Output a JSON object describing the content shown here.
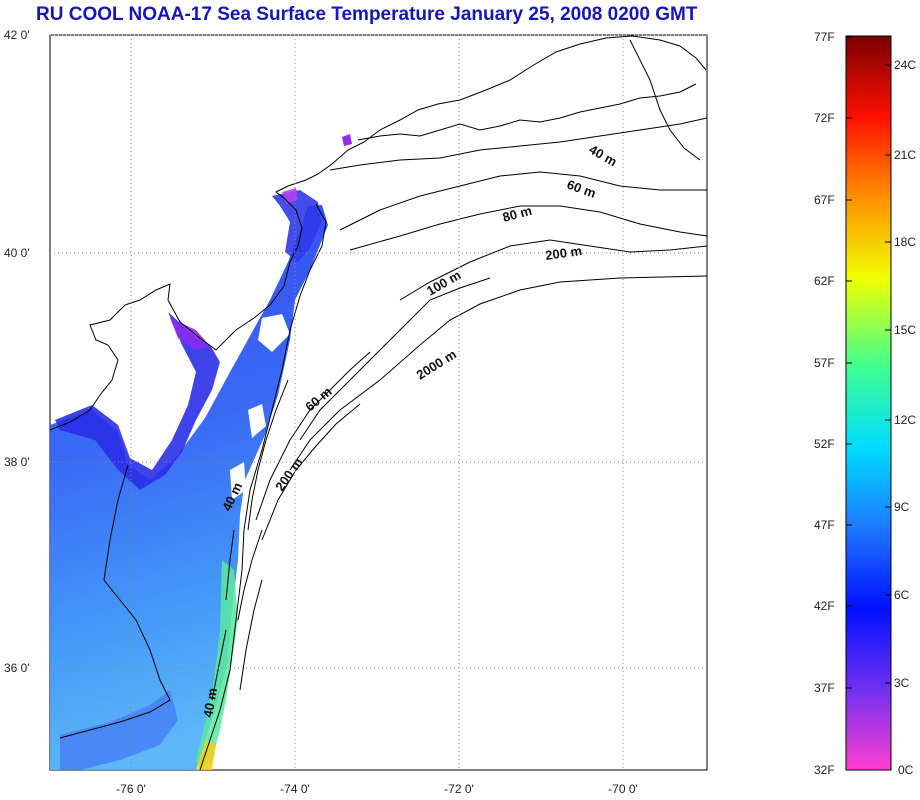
{
  "title": "RU COOL  NOAA-17 Sea Surface Temperature January 25, 2008 0200 GMT",
  "map": {
    "latitude_labels": [
      "42 0'",
      "40 0'",
      "38 0'",
      "36 0'"
    ],
    "longitude_labels": [
      "-76 0'",
      "-74 0'",
      "-72 0'",
      "-70 0'"
    ],
    "depth_contour_labels": [
      "40 m",
      "60 m",
      "80 m",
      "200 m",
      "100 m",
      "2000 m",
      "60 m",
      "200 m",
      "40 m",
      "40 m"
    ]
  },
  "colorbar": {
    "fahrenheit_labels": [
      "77F",
      "72F",
      "67F",
      "62F",
      "57F",
      "52F",
      "47F",
      "42F",
      "37F",
      "32F"
    ],
    "celsius_labels": [
      "24C",
      "21C",
      "18C",
      "15C",
      "12C",
      "9C",
      "6C",
      "3C",
      "0C"
    ],
    "colors": [
      "#ff40d0",
      "#7030f0",
      "#0010ff",
      "#1e78ff",
      "#00ddff",
      "#40ff90",
      "#f0ff00",
      "#ff9000",
      "#ff1000",
      "#7a0000"
    ]
  }
}
